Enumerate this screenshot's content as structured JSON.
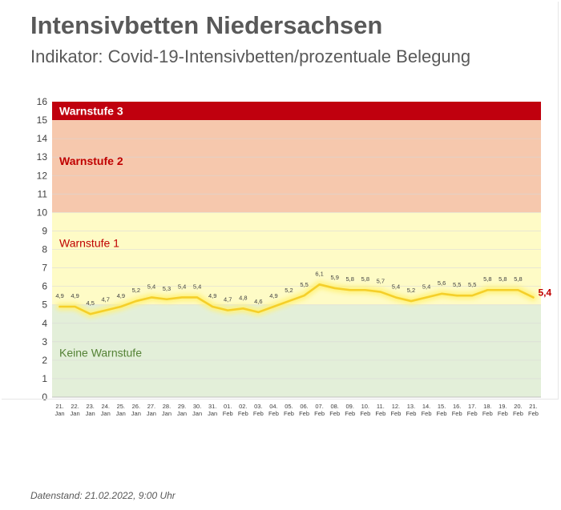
{
  "title": "Intensivbetten Niedersachsen",
  "subtitle": "Indikator: Covid-19-Intensivbetten/prozentuale Belegung",
  "footer": "Datenstand: 21.02.2022, 9:00 Uhr",
  "colors": {
    "band_red": "#c0000e",
    "band_orange": "#f6c8ad",
    "band_yellow": "#fefbc6",
    "band_green": "#e3efd9",
    "line": "#f5cf29",
    "line_glow": "#fff27a",
    "warn3_text": "#ffffff",
    "warn2_text": "#c00000",
    "warn1_text": "#c00000",
    "keine_text": "#548235",
    "last_label": "#c00000",
    "grid": "#d9d9d9",
    "text": "#404040"
  },
  "chart_data": {
    "type": "line",
    "ylim": [
      0,
      16
    ],
    "yticks": [
      "0",
      "1",
      "2",
      "3",
      "4",
      "5",
      "6",
      "7",
      "8",
      "9",
      "10",
      "11",
      "12",
      "13",
      "14",
      "15",
      "16"
    ],
    "grid": true,
    "bands": [
      {
        "label": "Warnstufe 3",
        "from": 15,
        "to": 16,
        "color": "#c0000e"
      },
      {
        "label": "Warnstufe 2",
        "from": 10,
        "to": 15,
        "color": "#f6c8ad"
      },
      {
        "label": "Warnstufe 1",
        "from": 5,
        "to": 10,
        "color": "#fefbc6"
      },
      {
        "label": "Keine Warnstufe",
        "from": 0,
        "to": 5,
        "color": "#e3efd9"
      }
    ],
    "categories": [
      [
        "21.",
        "Jan"
      ],
      [
        "22.",
        "Jan"
      ],
      [
        "23.",
        "Jan"
      ],
      [
        "24.",
        "Jan"
      ],
      [
        "25.",
        "Jan"
      ],
      [
        "26.",
        "Jan"
      ],
      [
        "27.",
        "Jan"
      ],
      [
        "28.",
        "Jan"
      ],
      [
        "29.",
        "Jan"
      ],
      [
        "30.",
        "Jan"
      ],
      [
        "31.",
        "Jan"
      ],
      [
        "01.",
        "Feb"
      ],
      [
        "02.",
        "Feb"
      ],
      [
        "03.",
        "Feb"
      ],
      [
        "04.",
        "Feb"
      ],
      [
        "05.",
        "Feb"
      ],
      [
        "06.",
        "Feb"
      ],
      [
        "07.",
        "Feb"
      ],
      [
        "08.",
        "Feb"
      ],
      [
        "09.",
        "Feb"
      ],
      [
        "10.",
        "Feb"
      ],
      [
        "11.",
        "Feb"
      ],
      [
        "12.",
        "Feb"
      ],
      [
        "13.",
        "Feb"
      ],
      [
        "14.",
        "Feb"
      ],
      [
        "15.",
        "Feb"
      ],
      [
        "16.",
        "Feb"
      ],
      [
        "17.",
        "Feb"
      ],
      [
        "18.",
        "Feb"
      ],
      [
        "19.",
        "Feb"
      ],
      [
        "20.",
        "Feb"
      ],
      [
        "21.",
        "Feb"
      ]
    ],
    "values": [
      4.9,
      4.9,
      4.5,
      4.7,
      4.9,
      5.2,
      5.4,
      5.3,
      5.4,
      5.4,
      4.9,
      4.7,
      4.8,
      4.6,
      4.9,
      5.2,
      5.5,
      6.1,
      5.9,
      5.8,
      5.8,
      5.7,
      5.4,
      5.2,
      5.4,
      5.6,
      5.5,
      5.5,
      5.8,
      5.8,
      5.8,
      5.4
    ],
    "labels": [
      "4,9",
      "4,9",
      "4,5",
      "4,7",
      "4,9",
      "5,2",
      "5,4",
      "5,3",
      "5,4",
      "5,4",
      "4,9",
      "4,7",
      "4,8",
      "4,6",
      "4,9",
      "5,2",
      "5,5",
      "6,1",
      "5,9",
      "5,8",
      "5,8",
      "5,7",
      "5,4",
      "5,2",
      "5,4",
      "5,6",
      "5,5",
      "5,5",
      "5,8",
      "5,8",
      "5,8",
      "5,4"
    ]
  }
}
